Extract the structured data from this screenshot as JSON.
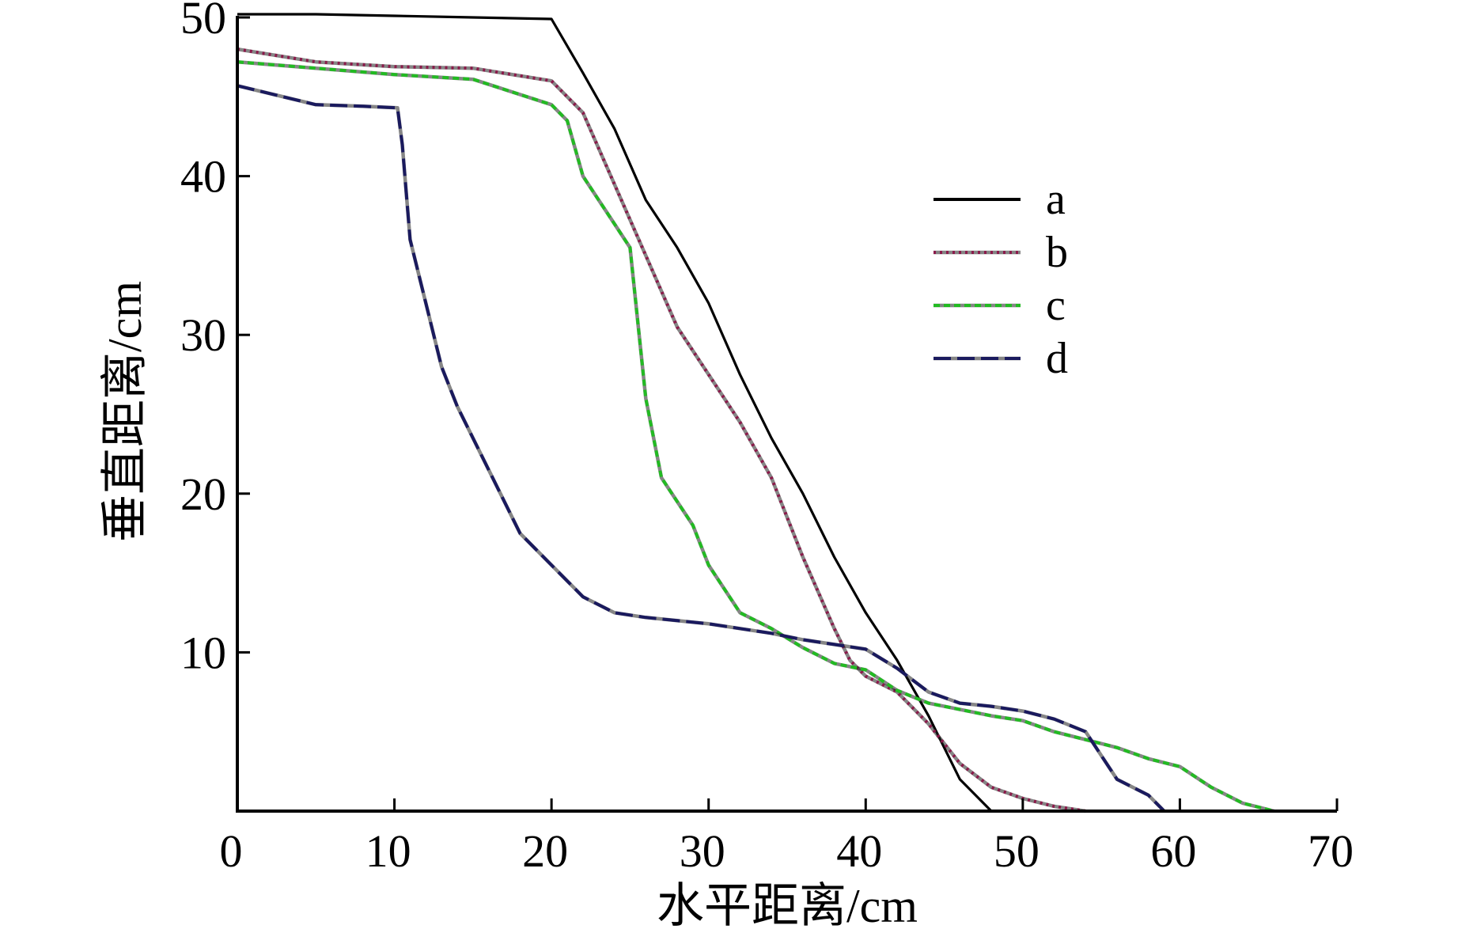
{
  "chart_data": {
    "type": "line",
    "title": "",
    "xlabel": "水平距离/cm",
    "ylabel": "垂直距离/cm",
    "xlim": [
      0,
      70
    ],
    "ylim": [
      0,
      50
    ],
    "xticks": [
      0,
      10,
      20,
      30,
      40,
      50,
      60,
      70
    ],
    "yticks": [
      10,
      20,
      30,
      40,
      50
    ],
    "grid": false,
    "legend": "right",
    "series": [
      {
        "name": "a",
        "color": "#000000",
        "style": "solid",
        "points": [
          [
            0,
            50.2
          ],
          [
            5,
            50.2
          ],
          [
            10,
            50.1
          ],
          [
            15,
            50.0
          ],
          [
            20,
            49.9
          ],
          [
            22,
            46.5
          ],
          [
            24,
            43.0
          ],
          [
            26,
            38.5
          ],
          [
            28,
            35.5
          ],
          [
            30,
            32.0
          ],
          [
            32,
            27.5
          ],
          [
            34,
            23.5
          ],
          [
            36,
            20.0
          ],
          [
            38,
            16.0
          ],
          [
            40,
            12.5
          ],
          [
            42,
            9.5
          ],
          [
            44,
            6.0
          ],
          [
            46,
            2.0
          ],
          [
            48,
            0
          ]
        ]
      },
      {
        "name": "b",
        "color": "#8b1a4a",
        "style": "dotted",
        "points": [
          [
            0,
            48.0
          ],
          [
            5,
            47.2
          ],
          [
            10,
            46.9
          ],
          [
            15,
            46.8
          ],
          [
            20,
            46.0
          ],
          [
            22,
            44.0
          ],
          [
            24,
            39.5
          ],
          [
            26,
            35.0
          ],
          [
            28,
            30.5
          ],
          [
            30,
            27.5
          ],
          [
            32,
            24.5
          ],
          [
            34,
            21.0
          ],
          [
            36,
            16.0
          ],
          [
            38,
            11.5
          ],
          [
            39,
            9.5
          ],
          [
            40,
            8.5
          ],
          [
            42,
            7.5
          ],
          [
            44,
            5.5
          ],
          [
            46,
            3.0
          ],
          [
            48,
            1.5
          ],
          [
            50,
            0.8
          ],
          [
            52,
            0.3
          ],
          [
            54,
            0
          ]
        ]
      },
      {
        "name": "c",
        "color": "#22bb22",
        "style": "dashed",
        "points": [
          [
            0,
            47.2
          ],
          [
            5,
            46.8
          ],
          [
            10,
            46.4
          ],
          [
            15,
            46.1
          ],
          [
            20,
            44.5
          ],
          [
            21,
            43.5
          ],
          [
            22,
            40.0
          ],
          [
            23,
            38.5
          ],
          [
            24,
            37.0
          ],
          [
            25,
            35.5
          ],
          [
            26,
            26.0
          ],
          [
            27,
            21.0
          ],
          [
            29,
            18.0
          ],
          [
            30,
            15.5
          ],
          [
            32,
            12.5
          ],
          [
            34,
            11.5
          ],
          [
            36,
            10.3
          ],
          [
            38,
            9.3
          ],
          [
            40,
            8.9
          ],
          [
            42,
            7.6
          ],
          [
            44,
            6.8
          ],
          [
            46,
            6.4
          ],
          [
            48,
            6.0
          ],
          [
            50,
            5.7
          ],
          [
            52,
            5.0
          ],
          [
            54,
            4.5
          ],
          [
            56,
            4.0
          ],
          [
            58,
            3.3
          ],
          [
            60,
            2.8
          ],
          [
            62,
            1.5
          ],
          [
            64,
            0.5
          ],
          [
            66,
            0
          ]
        ]
      },
      {
        "name": "d",
        "color": "#1a1a5e",
        "style": "dashed",
        "points": [
          [
            0,
            45.7
          ],
          [
            5,
            44.5
          ],
          [
            8,
            44.4
          ],
          [
            10.2,
            44.3
          ],
          [
            10.5,
            42.0
          ],
          [
            11,
            36.0
          ],
          [
            12,
            32.0
          ],
          [
            13,
            28.0
          ],
          [
            14,
            25.5
          ],
          [
            16,
            21.5
          ],
          [
            18,
            17.5
          ],
          [
            20,
            15.5
          ],
          [
            22,
            13.5
          ],
          [
            24,
            12.5
          ],
          [
            26,
            12.2
          ],
          [
            28,
            12.0
          ],
          [
            30,
            11.8
          ],
          [
            32,
            11.5
          ],
          [
            34,
            11.2
          ],
          [
            36,
            10.8
          ],
          [
            38,
            10.5
          ],
          [
            40,
            10.2
          ],
          [
            42,
            9.0
          ],
          [
            44,
            7.5
          ],
          [
            46,
            6.8
          ],
          [
            48,
            6.6
          ],
          [
            50,
            6.3
          ],
          [
            52,
            5.8
          ],
          [
            54,
            5.0
          ],
          [
            55,
            3.5
          ],
          [
            56,
            2.0
          ],
          [
            58,
            1.0
          ],
          [
            59,
            0
          ]
        ]
      }
    ]
  }
}
